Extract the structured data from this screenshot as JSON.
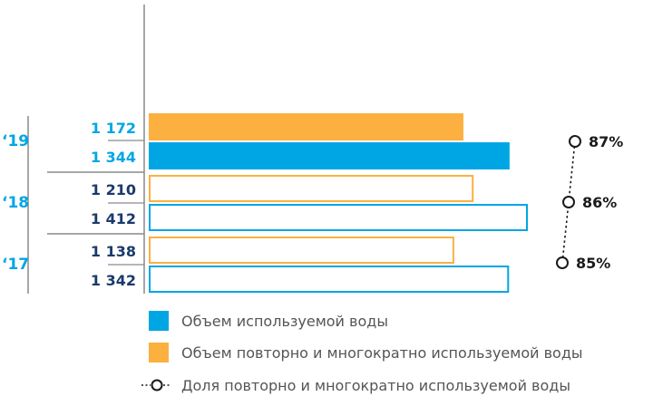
{
  "colors": {
    "total": "#00a6e4",
    "reused": "#fbb040",
    "value_text": "#1a3a6b",
    "axis": "#8a8a8a",
    "legend_text": "#555555",
    "share": "#1a1a1a"
  },
  "chart_data": {
    "type": "bar",
    "orientation": "horizontal",
    "categories": [
      "‘19",
      "‘18",
      "‘17"
    ],
    "series": [
      {
        "name": "Объем повторно и многократно используемой воды",
        "key": "reused",
        "values": [
          1172,
          1210,
          1138
        ],
        "labels": [
          "1 172",
          "1 210",
          "1 138"
        ]
      },
      {
        "name": "Объем используемой воды",
        "key": "total",
        "values": [
          1344,
          1412,
          1342
        ],
        "labels": [
          "1 344",
          "1 412",
          "1 342"
        ]
      }
    ],
    "share": {
      "name": "Доля повторно и многократно используемой воды",
      "values": [
        87,
        86,
        85
      ],
      "labels": [
        "87%",
        "86%",
        "85%"
      ]
    },
    "filled_category": "‘19",
    "xlim": [
      0,
      1412
    ]
  },
  "legend": [
    {
      "key": "total",
      "label": "Объем используемой воды"
    },
    {
      "key": "reused",
      "label": "Объем повторно и многократно используемой воды"
    },
    {
      "key": "share",
      "label": "Доля повторно и многократно используемой воды"
    }
  ]
}
